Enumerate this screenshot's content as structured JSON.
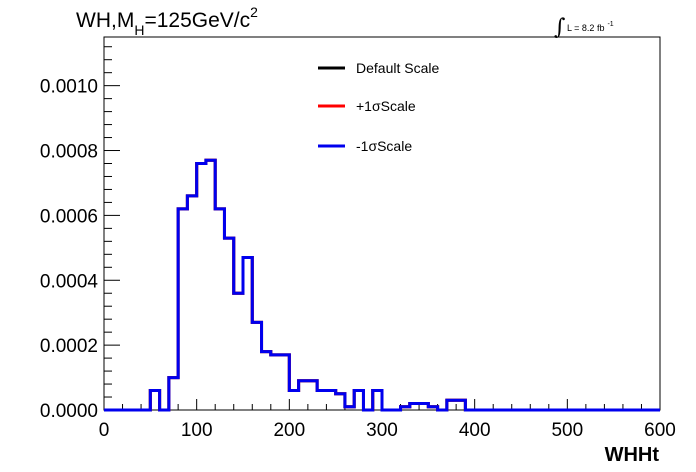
{
  "chart_data": {
    "type": "line",
    "title_parts": {
      "main": "WH,M",
      "sub": "H",
      "rest": "=125GeV/c",
      "sup": "2"
    },
    "lumi": {
      "integral": "∫",
      "text": "L = 8.2 fb",
      "sup": "-1"
    },
    "xlabel": "WHHt",
    "ylabel": "",
    "xlim": [
      0,
      600
    ],
    "ylim": [
      0,
      0.00115
    ],
    "xticks": [
      0,
      100,
      200,
      300,
      400,
      500,
      600
    ],
    "xtick_labels": [
      "0",
      "100",
      "200",
      "300",
      "400",
      "500",
      "600"
    ],
    "yticks": [
      0,
      0.0002,
      0.0004,
      0.0006,
      0.0008,
      0.001
    ],
    "ytick_labels": [
      "0.0000",
      "0.0002",
      "0.0004",
      "0.0006",
      "0.0008",
      "0.0010"
    ],
    "bin_width": 10,
    "bin_edges_start": 0,
    "grid": false,
    "legend_position": "top-center",
    "series": [
      {
        "name": "Default Scale",
        "color": "#000000",
        "values": [
          0,
          0,
          0,
          0,
          0,
          6e-05,
          0,
          0.0001,
          0.00062,
          0.00066,
          0.00076,
          0.00077,
          0.00062,
          0.00053,
          0.00036,
          0.00047,
          0.00027,
          0.00018,
          0.00017,
          0.00017,
          6e-05,
          9e-05,
          9e-05,
          6e-05,
          6e-05,
          5e-05,
          1e-05,
          6e-05,
          0,
          6e-05,
          0,
          0,
          1e-05,
          2e-05,
          2e-05,
          1e-05,
          0,
          3e-05,
          3e-05,
          0,
          0,
          0,
          0,
          0,
          0,
          0,
          0,
          0,
          0,
          0,
          0,
          0,
          0,
          0,
          0,
          0,
          0,
          0,
          0,
          0
        ]
      },
      {
        "name": "+1σScale",
        "color": "#ff0000",
        "values": [
          0,
          0,
          0,
          0,
          0,
          6e-05,
          0,
          0.0001,
          0.00062,
          0.00066,
          0.00076,
          0.00077,
          0.00062,
          0.00053,
          0.00036,
          0.00047,
          0.00027,
          0.00018,
          0.00017,
          0.00017,
          6e-05,
          9e-05,
          9e-05,
          6e-05,
          6e-05,
          5e-05,
          1e-05,
          6e-05,
          0,
          6e-05,
          0,
          0,
          1e-05,
          2e-05,
          2e-05,
          1e-05,
          0,
          3e-05,
          3e-05,
          0,
          0,
          0,
          0,
          0,
          0,
          0,
          0,
          0,
          0,
          0,
          0,
          0,
          0,
          0,
          0,
          0,
          0,
          0,
          0,
          0
        ]
      },
      {
        "name": "-1σScale",
        "color": "#0000ee",
        "values": [
          0,
          0,
          0,
          0,
          0,
          6e-05,
          0,
          0.0001,
          0.00062,
          0.00066,
          0.00076,
          0.00077,
          0.00062,
          0.00053,
          0.00036,
          0.00047,
          0.00027,
          0.00018,
          0.00017,
          0.00017,
          6e-05,
          9e-05,
          9e-05,
          6e-05,
          6e-05,
          5e-05,
          1e-05,
          6e-05,
          0,
          6e-05,
          0,
          0,
          1e-05,
          2e-05,
          2e-05,
          1e-05,
          0,
          3e-05,
          3e-05,
          0,
          0,
          0,
          0,
          0,
          0,
          0,
          0,
          0,
          0,
          0,
          0,
          0,
          0,
          0,
          0,
          0,
          0,
          0,
          0,
          0
        ]
      }
    ]
  }
}
